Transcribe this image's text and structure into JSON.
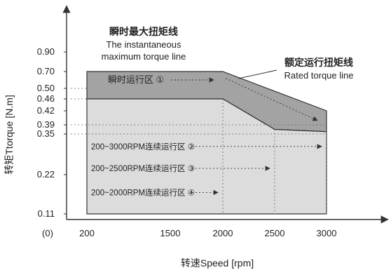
{
  "chart_data": {
    "type": "area",
    "title": "",
    "xlabel": "转速Speed [rpm]",
    "ylabel": "转矩Ttorque [N.m]",
    "x_ticks": [
      "(0)",
      "200",
      "1500",
      "2000",
      "2500",
      "3000"
    ],
    "x_tick_values": [
      0,
      200,
      1500,
      2000,
      2500,
      3000
    ],
    "y_ticks": [
      "0.90",
      "0.70",
      "0.50",
      "0.46",
      "0.42",
      "0.39",
      "0.35",
      "0.22",
      "0.11"
    ],
    "y_tick_values": [
      0.9,
      0.7,
      0.5,
      0.46,
      0.42,
      0.39,
      0.35,
      0.22,
      0.11
    ],
    "series": [
      {
        "name": "瞬时最大扭矩线",
        "x": [
          200,
          2000,
          3000
        ],
        "y": [
          0.7,
          0.7,
          0.42
        ]
      },
      {
        "name": "额定运行扭矩线",
        "x": [
          200,
          2000,
          2500,
          3000
        ],
        "y": [
          0.46,
          0.46,
          0.37,
          0.36
        ]
      }
    ],
    "continuous_limits": [
      {
        "label": "200~3000RPM连续运行区 ②",
        "x_max": 3000,
        "y": 0.35
      },
      {
        "label": "200~2500RPM连续运行区 ③",
        "x_max": 2500,
        "y": 0.39
      },
      {
        "label": "200~2000RPM连续运行区 ④",
        "x_max": 2000,
        "y": 0.46
      }
    ],
    "annotations": {
      "instant_region": "瞬时运行区 ①",
      "instant_cn": "瞬时最大扭矩线",
      "instant_en1": "The instantaneous",
      "instant_en2": "maximum torque line",
      "rated_cn": "额定运行扭矩线",
      "rated_en": "Rated torque line"
    },
    "colors": {
      "instant_fill": "#a3a3a3",
      "continuous_fill": "#dcdcdc",
      "outline": "#333333",
      "guide": "#666666"
    },
    "grid": false,
    "legend": "none"
  }
}
